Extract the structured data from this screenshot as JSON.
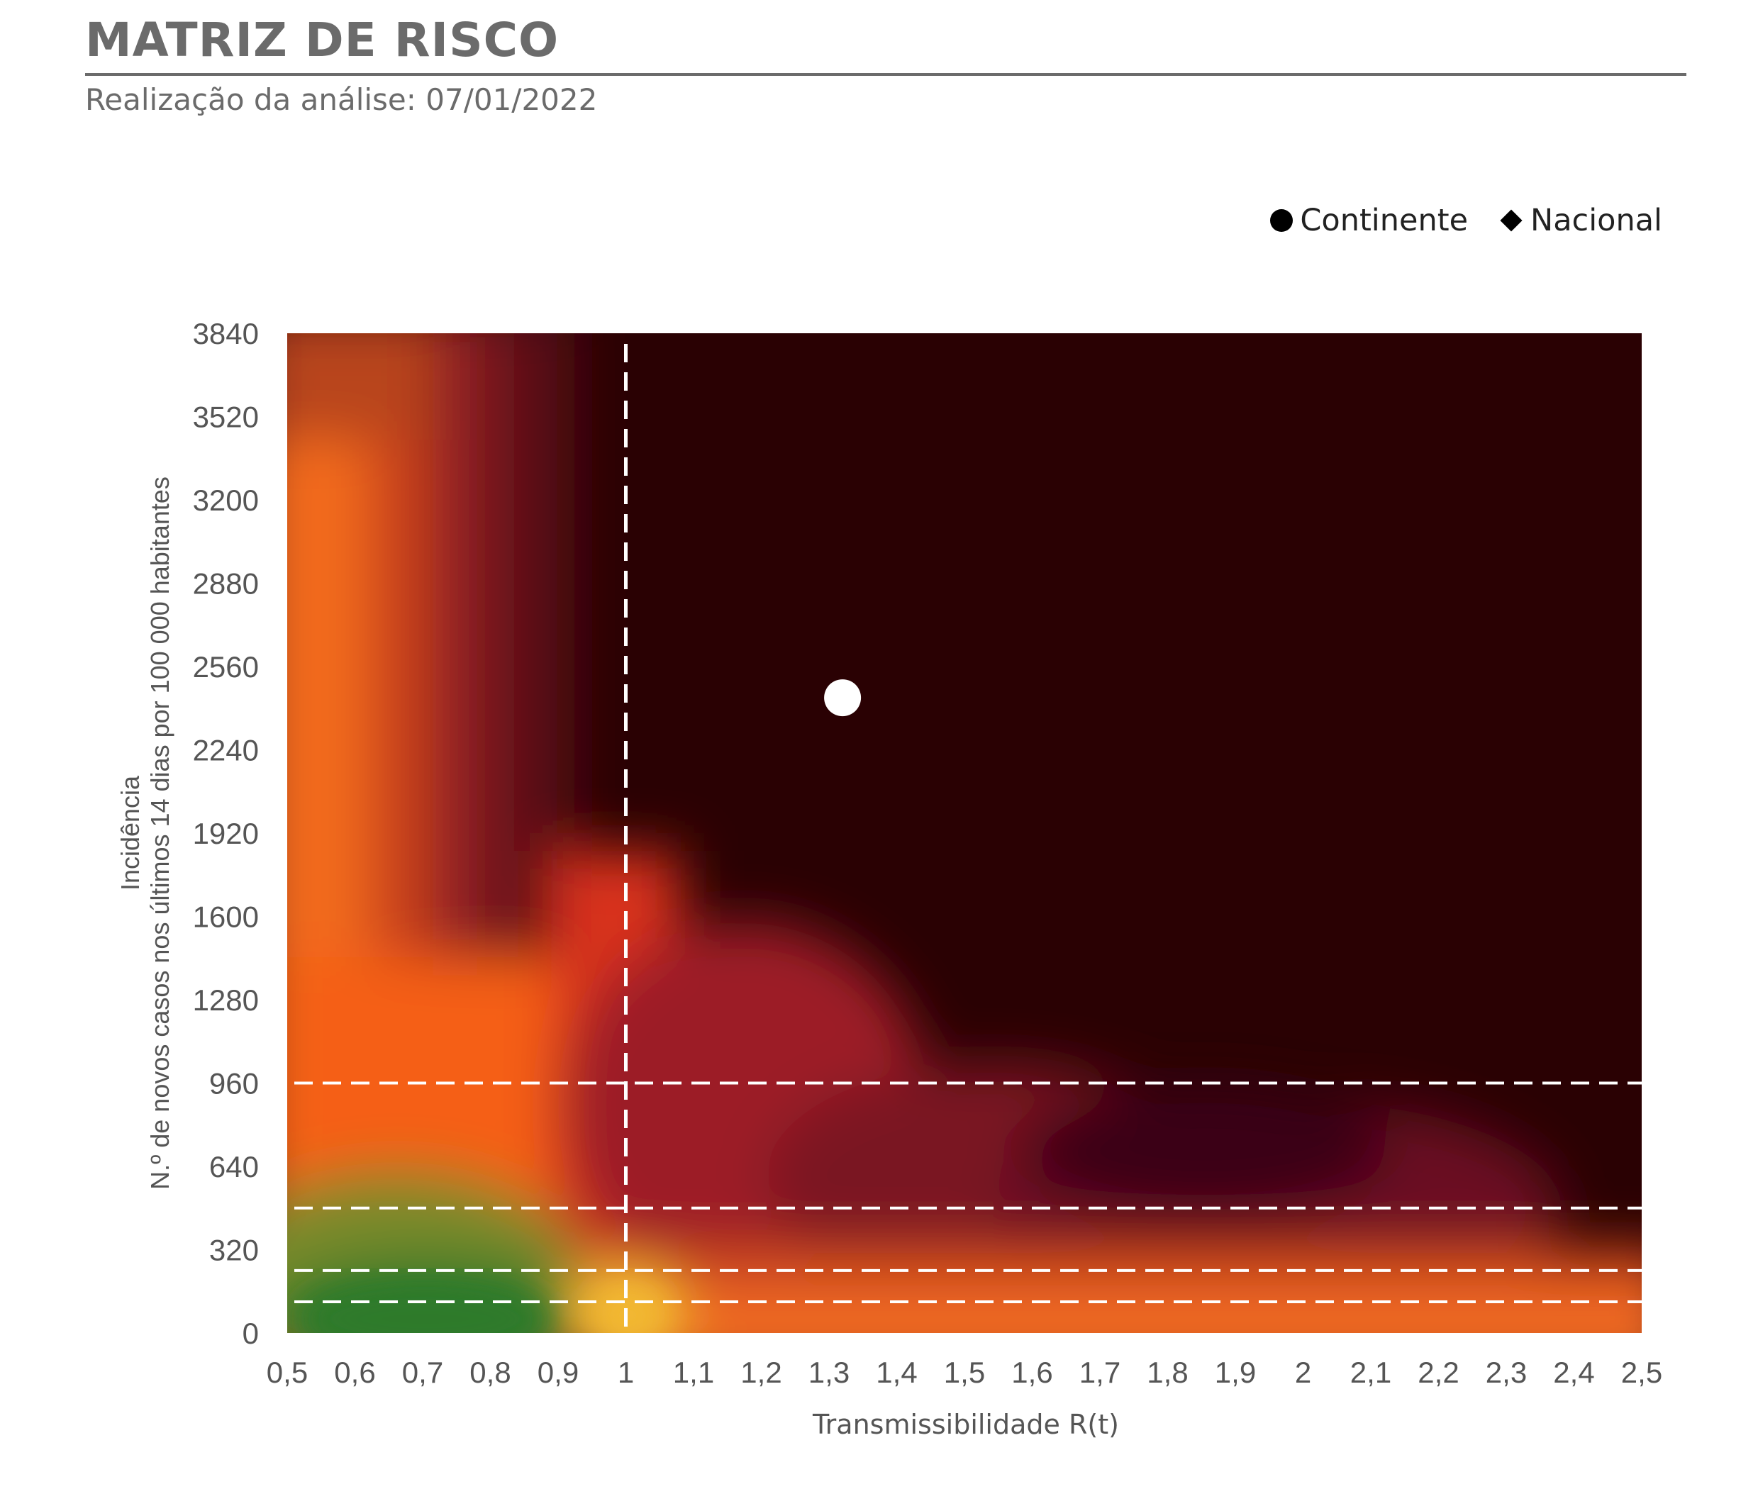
{
  "header": {
    "title": "MATRIZ DE RISCO",
    "subtitle": "Realização da análise: 07/01/2022"
  },
  "legend": {
    "items": [
      {
        "label": "Continente",
        "marker": "circle"
      },
      {
        "label": "Nacional",
        "marker": "diamond"
      }
    ]
  },
  "chart_data": {
    "type": "scatter",
    "xlabel": "Transmissibilidade R(t)",
    "ylabel": [
      "Incidência",
      "N.º de novos casos nos últimos 14 dias por 100 000 habitantes"
    ],
    "xlim": [
      0.5,
      2.5
    ],
    "ylim": [
      0,
      3840
    ],
    "x_ticks": [
      0.5,
      0.6,
      0.7,
      0.8,
      0.9,
      1,
      1.1,
      1.2,
      1.3,
      1.4,
      1.5,
      1.6,
      1.7,
      1.8,
      1.9,
      2,
      2.1,
      2.2,
      2.3,
      2.4,
      2.5
    ],
    "x_tick_labels": [
      "0,5",
      "0,6",
      "0,7",
      "0,8",
      "0,9",
      "1",
      "1,1",
      "1,2",
      "1,3",
      "1,4",
      "1,5",
      "1,6",
      "1,7",
      "1,8",
      "1,9",
      "2",
      "2,1",
      "2,2",
      "2,3",
      "2,4",
      "2,5"
    ],
    "y_ticks": [
      0,
      320,
      640,
      960,
      1280,
      1600,
      1920,
      2240,
      2560,
      2880,
      3200,
      3520,
      3840
    ],
    "y_tick_labels": [
      "0",
      "320",
      "640",
      "960",
      "1280",
      "1600",
      "1920",
      "2240",
      "2560",
      "2880",
      "3200",
      "3520",
      "3840"
    ],
    "reference_lines": {
      "vertical_x": [
        1
      ],
      "horizontal_y": [
        120,
        240,
        480,
        960
      ],
      "style": "dashed",
      "color": "#ffffff"
    },
    "background": "heatmap risk gradient: green at low incidence and low R(t), through yellow, orange and red, to near-black at high incidence and high R(t)",
    "series": [
      {
        "name": "Continente",
        "marker": "circle",
        "color": "#ffffff",
        "points": [
          {
            "x": 1.32,
            "y": 2440
          }
        ]
      }
    ],
    "grid": false
  }
}
